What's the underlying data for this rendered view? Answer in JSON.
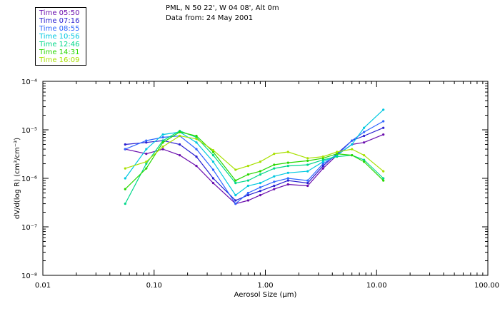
{
  "header": {
    "location": "PML, N 50 22', W 04 08', Alt 0m",
    "date": "Data from: 24 May 2001"
  },
  "legend": [
    {
      "label": "Time 05:50",
      "color": "#6a0dad"
    },
    {
      "label": "Time 07:16",
      "color": "#2a1fd0"
    },
    {
      "label": "Time 08:55",
      "color": "#2f66ff"
    },
    {
      "label": "Time 10:56",
      "color": "#00c8e0"
    },
    {
      "label": "Time 12:46",
      "color": "#00d88a"
    },
    {
      "label": "Time 14:31",
      "color": "#28d800"
    },
    {
      "label": "Time 16:09",
      "color": "#a8e000"
    }
  ],
  "chart_data": {
    "type": "line",
    "title": "PML, N 50 22', W 04 08', Alt 0m",
    "subtitle": "Data from: 24 May 2001",
    "xlabel": "Aerosol Size (μm)",
    "ylabel": "dV/d(log R) (cm³/cm⁻³)",
    "xscale": "log",
    "yscale": "log",
    "xlim": [
      0.01,
      100
    ],
    "ylim": [
      1e-08,
      0.0001
    ],
    "x_ticks": [
      "0.01",
      "0.10",
      "1.00",
      "10.00",
      "100.00"
    ],
    "y_ticks": [
      "10⁻⁸",
      "10⁻⁷",
      "10⁻⁶",
      "10⁻⁵",
      "10⁻⁴"
    ],
    "x": [
      0.055,
      0.085,
      0.12,
      0.17,
      0.24,
      0.34,
      0.54,
      0.7,
      0.9,
      1.2,
      1.6,
      2.4,
      3.3,
      4.4,
      6.0,
      7.7,
      11.5
    ],
    "series": [
      {
        "name": "Time 05:50",
        "color": "#6a0dad",
        "values": [
          4e-06,
          3.2e-06,
          4e-06,
          3e-06,
          1.8e-06,
          8e-07,
          3e-07,
          3.5e-07,
          4.5e-07,
          6e-07,
          7.5e-07,
          7e-07,
          1.6e-06,
          3e-06,
          5e-06,
          5.5e-06,
          8e-06
        ]
      },
      {
        "name": "Time 07:16",
        "color": "#2a1fd0",
        "values": [
          5e-06,
          5.5e-06,
          6e-06,
          5e-06,
          2.8e-06,
          1e-06,
          3.5e-07,
          4.5e-07,
          5.5e-07,
          7e-07,
          9e-07,
          8e-07,
          1.8e-06,
          3.2e-06,
          6e-06,
          7.5e-06,
          1.1e-05
        ]
      },
      {
        "name": "Time 08:55",
        "color": "#2f66ff",
        "values": [
          4e-06,
          6e-06,
          7e-06,
          7.5e-06,
          4e-06,
          1.5e-06,
          3e-07,
          5e-07,
          6.5e-07,
          8.5e-07,
          1e-06,
          9e-07,
          2e-06,
          3e-06,
          6e-06,
          9e-06,
          1.5e-05
        ]
      },
      {
        "name": "Time 10:56",
        "color": "#00c8e0",
        "values": [
          1e-06,
          4e-06,
          8e-06,
          9e-06,
          5.5e-06,
          2.2e-06,
          4.5e-07,
          7e-07,
          8e-07,
          1.1e-06,
          1.3e-06,
          1.4e-06,
          2.2e-06,
          3e-06,
          5e-06,
          1.1e-05,
          2.6e-05
        ]
      },
      {
        "name": "Time 12:46",
        "color": "#00d88a",
        "values": [
          3e-07,
          2e-06,
          6e-06,
          9.5e-06,
          7e-06,
          3e-06,
          8e-07,
          9e-07,
          1.2e-06,
          1.6e-06,
          1.8e-06,
          1.9e-06,
          2.4e-06,
          2.8e-06,
          3e-06,
          2.4e-06,
          1e-06
        ]
      },
      {
        "name": "Time 14:31",
        "color": "#28d800",
        "values": [
          6e-07,
          1.6e-06,
          5.5e-06,
          9e-06,
          7.5e-06,
          3.5e-06,
          9e-07,
          1.2e-06,
          1.4e-06,
          1.9e-06,
          2.1e-06,
          2.3e-06,
          2.6e-06,
          3.2e-06,
          3e-06,
          2.2e-06,
          9e-07
        ]
      },
      {
        "name": "Time 16:09",
        "color": "#a8e000",
        "values": [
          1.6e-06,
          2.2e-06,
          4.5e-06,
          7.5e-06,
          6.5e-06,
          3.8e-06,
          1.5e-06,
          1.8e-06,
          2.2e-06,
          3.2e-06,
          3.5e-06,
          2.6e-06,
          2.8e-06,
          3.5e-06,
          4e-06,
          3e-06,
          1.4e-06
        ]
      }
    ]
  }
}
